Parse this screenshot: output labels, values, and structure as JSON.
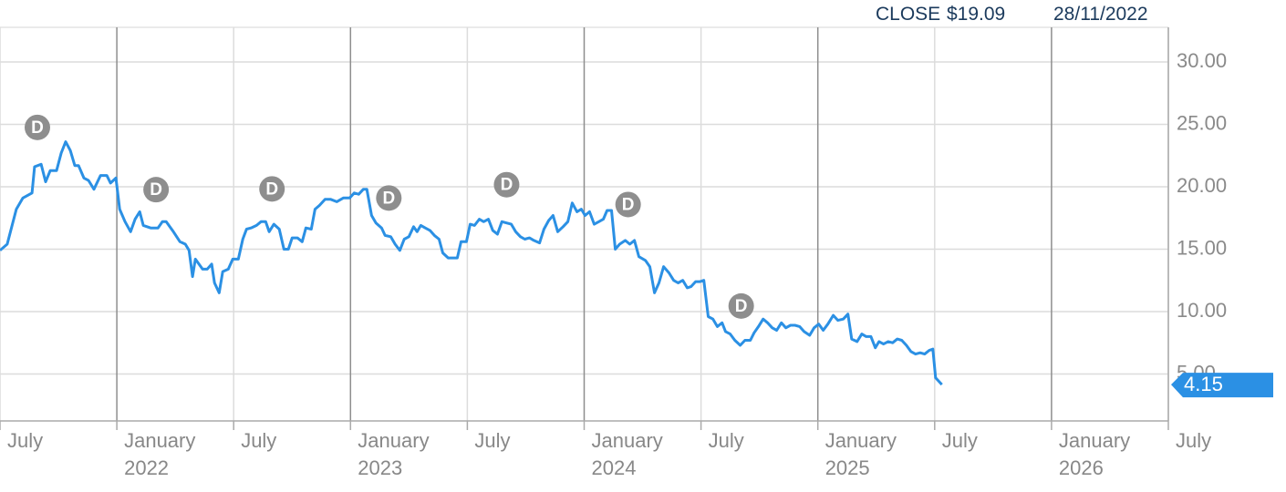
{
  "chart_data": {
    "type": "line",
    "header": {
      "close_label": "CLOSE",
      "close_value": "$19.09",
      "date": "28/11/2022"
    },
    "color": "#2b90e4",
    "xlim": [
      2021.5,
      2026.5
    ],
    "ylim": [
      1.24,
      32.77
    ],
    "xticks": [
      {
        "value": 2021.5,
        "label": "July"
      },
      {
        "value": 2022,
        "label": "January 2022"
      },
      {
        "value": 2022.5,
        "label": "July"
      },
      {
        "value": 2023,
        "label": "January 2023"
      },
      {
        "value": 2023.5,
        "label": "July"
      },
      {
        "value": 2024,
        "label": "January 2024"
      },
      {
        "value": 2024.5,
        "label": "July"
      },
      {
        "value": 2025,
        "label": "January 2025"
      },
      {
        "value": 2025.5,
        "label": "July"
      },
      {
        "value": 2026,
        "label": "January 2026"
      },
      {
        "value": 2026.5,
        "label": "July"
      }
    ],
    "yticks": [
      {
        "value": 5,
        "label": "5.00"
      },
      {
        "value": 10,
        "label": "10.00"
      },
      {
        "value": 15,
        "label": "15.00"
      },
      {
        "value": 20,
        "label": "20.00"
      },
      {
        "value": 25,
        "label": "25.00"
      },
      {
        "value": 30,
        "label": "30.00"
      }
    ],
    "grid": true,
    "annotations": [
      {
        "text": "D",
        "x": 2021.66
      },
      {
        "text": "D",
        "x": 2022.168
      },
      {
        "text": "D",
        "x": 2022.664
      },
      {
        "text": "D",
        "x": 2023.164
      },
      {
        "text": "D",
        "x": 2023.668
      },
      {
        "text": "D",
        "x": 2024.188
      },
      {
        "text": "D",
        "x": 2024.672
      }
    ],
    "x": [
      2021.5,
      2021.531,
      2021.57,
      2021.598,
      2021.637,
      2021.648,
      2021.676,
      2021.695,
      2021.715,
      2021.742,
      2021.762,
      2021.781,
      2021.801,
      2021.82,
      2021.836,
      2021.859,
      2021.879,
      2021.902,
      2021.93,
      2021.957,
      2021.973,
      2021.996,
      2022.012,
      2022.035,
      2022.059,
      2022.078,
      2022.098,
      2022.113,
      2022.145,
      2022.176,
      2022.195,
      2022.211,
      2022.242,
      2022.27,
      2022.293,
      2022.309,
      2022.324,
      2022.336,
      2022.367,
      2022.387,
      2022.406,
      2022.418,
      2022.438,
      2022.453,
      2022.477,
      2022.496,
      2022.52,
      2022.539,
      2022.555,
      2022.574,
      2022.598,
      2022.617,
      2022.637,
      2022.652,
      2022.672,
      2022.695,
      2022.715,
      2022.734,
      2022.75,
      2022.773,
      2022.793,
      2022.809,
      2022.832,
      2022.848,
      2022.867,
      2022.891,
      2022.914,
      2022.941,
      2022.969,
      2022.996,
      2023.016,
      2023.035,
      2023.055,
      2023.07,
      2023.09,
      2023.109,
      2023.133,
      2023.148,
      2023.172,
      2023.191,
      2023.211,
      2023.23,
      2023.25,
      2023.27,
      2023.285,
      2023.301,
      2023.32,
      2023.34,
      2023.359,
      2023.379,
      2023.395,
      2023.418,
      2023.457,
      2023.473,
      2023.496,
      2023.512,
      2023.531,
      2023.551,
      2023.57,
      2023.59,
      2023.609,
      2023.629,
      2023.648,
      2023.668,
      2023.688,
      2023.707,
      2023.727,
      2023.746,
      2023.766,
      2023.785,
      2023.809,
      2023.828,
      2023.848,
      2023.867,
      2023.887,
      2023.91,
      2023.93,
      2023.949,
      2023.969,
      2023.988,
      2024.004,
      2024.023,
      2024.043,
      2024.063,
      2024.082,
      2024.098,
      2024.117,
      2024.133,
      2024.152,
      2024.176,
      2024.195,
      2024.215,
      2024.234,
      2024.262,
      2024.281,
      2024.301,
      2024.32,
      2024.34,
      2024.363,
      2024.383,
      2024.402,
      2024.422,
      2024.441,
      2024.457,
      2024.477,
      2024.496,
      2024.512,
      2024.531,
      2024.551,
      2024.57,
      2024.59,
      2024.605,
      2024.625,
      2024.645,
      2024.668,
      2024.688,
      2024.711,
      2024.727,
      2024.746,
      2024.766,
      2024.785,
      2024.805,
      2024.824,
      2024.844,
      2024.863,
      2024.883,
      2024.902,
      2024.922,
      2024.941,
      2024.965,
      2024.984,
      2025.004,
      2025.023,
      2025.043,
      2025.066,
      2025.086,
      2025.109,
      2025.129,
      2025.145,
      2025.168,
      2025.188,
      2025.207,
      2025.227,
      2025.246,
      2025.262,
      2025.281,
      2025.301,
      2025.32,
      2025.34,
      2025.359,
      2025.379,
      2025.398,
      2025.418,
      2025.438,
      2025.457,
      2025.477,
      2025.492,
      2025.504,
      2025.531
    ],
    "values": [
      14.9,
      15.4,
      18.2,
      19.1,
      19.5,
      21.6,
      21.8,
      20.4,
      21.3,
      21.3,
      22.7,
      23.6,
      22.9,
      21.7,
      21.7,
      20.7,
      20.5,
      19.8,
      20.9,
      20.9,
      20.3,
      20.7,
      18.2,
      17.2,
      16.4,
      17.4,
      18.0,
      16.9,
      16.7,
      16.7,
      17.2,
      17.2,
      16.4,
      15.6,
      15.4,
      14.9,
      12.8,
      14.2,
      13.4,
      13.4,
      13.8,
      12.3,
      11.5,
      13.2,
      13.4,
      14.2,
      14.2,
      15.8,
      16.6,
      16.7,
      16.9,
      17.2,
      17.2,
      16.4,
      17.0,
      16.6,
      15.0,
      15.0,
      15.9,
      15.9,
      15.6,
      16.7,
      16.6,
      18.2,
      18.5,
      19.0,
      19.0,
      18.8,
      19.1,
      19.1,
      19.5,
      19.4,
      19.8,
      19.8,
      17.7,
      17.1,
      16.7,
      16.1,
      16.0,
      15.4,
      14.9,
      15.8,
      16.0,
      16.8,
      16.4,
      16.9,
      16.7,
      16.5,
      16.1,
      15.8,
      14.7,
      14.3,
      14.3,
      15.6,
      15.6,
      17.0,
      16.9,
      17.4,
      17.2,
      17.4,
      16.5,
      16.2,
      17.2,
      17.1,
      17.0,
      16.4,
      16.0,
      15.8,
      15.9,
      15.7,
      15.5,
      16.6,
      17.3,
      17.7,
      16.4,
      16.8,
      17.2,
      18.7,
      18.0,
      18.2,
      17.7,
      18.0,
      17.0,
      17.2,
      17.4,
      18.1,
      18.1,
      15.0,
      15.4,
      15.7,
      15.4,
      15.7,
      14.4,
      14.1,
      13.6,
      11.5,
      12.3,
      13.6,
      13.1,
      12.5,
      12.3,
      12.5,
      11.9,
      12.0,
      12.4,
      12.4,
      12.5,
      9.6,
      9.4,
      8.8,
      9.1,
      8.4,
      8.2,
      7.7,
      7.3,
      7.7,
      7.7,
      8.3,
      8.8,
      9.4,
      9.1,
      8.7,
      8.5,
      9.1,
      8.7,
      8.9,
      8.9,
      8.8,
      8.4,
      8.1,
      8.7,
      9.0,
      8.5,
      9.0,
      9.7,
      9.3,
      9.4,
      9.8,
      7.8,
      7.6,
      8.2,
      8.0,
      8.0,
      7.1,
      7.6,
      7.4,
      7.6,
      7.5,
      7.8,
      7.7,
      7.3,
      6.8,
      6.6,
      6.7,
      6.6,
      6.9,
      7.0,
      4.7,
      4.15
    ]
  }
}
